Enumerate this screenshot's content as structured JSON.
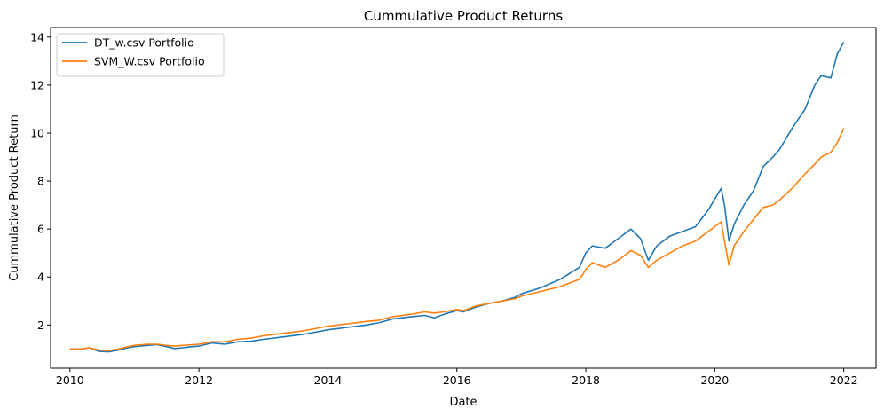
{
  "chart_data": {
    "type": "line",
    "title": "Cummulative Product Returns",
    "xlabel": "Date",
    "ylabel": "Cummulative Product Return",
    "xlim": [
      2009.7,
      2022.5
    ],
    "ylim": [
      0.2,
      14.4
    ],
    "x_ticks": [
      2010,
      2012,
      2014,
      2016,
      2018,
      2020,
      2022
    ],
    "y_ticks": [
      2,
      4,
      6,
      8,
      10,
      12,
      14
    ],
    "grid": false,
    "legend_position": "top-left",
    "series": [
      {
        "name": "DT_w.csv Portfolio",
        "color": "#1f77b4",
        "x": [
          2010.0,
          2010.15,
          2010.3,
          2010.45,
          2010.6,
          2010.75,
          2010.9,
          2011.0,
          2011.2,
          2011.35,
          2011.5,
          2011.62,
          2011.75,
          2011.9,
          2012.0,
          2012.2,
          2012.4,
          2012.6,
          2012.8,
          2013.0,
          2013.3,
          2013.6,
          2013.9,
          2014.0,
          2014.3,
          2014.6,
          2014.8,
          2015.0,
          2015.3,
          2015.5,
          2015.65,
          2015.8,
          2016.0,
          2016.1,
          2016.3,
          2016.5,
          2016.7,
          2016.9,
          2017.0,
          2017.3,
          2017.6,
          2017.9,
          2018.0,
          2018.1,
          2018.3,
          2018.5,
          2018.7,
          2018.85,
          2018.97,
          2019.1,
          2019.3,
          2019.5,
          2019.7,
          2019.9,
          2020.1,
          2020.15,
          2020.22,
          2020.3,
          2020.45,
          2020.6,
          2020.75,
          2020.9,
          2021.0,
          2021.2,
          2021.4,
          2021.55,
          2021.65,
          2021.8,
          2021.9,
          2022.0
        ],
        "y": [
          1.0,
          0.98,
          1.05,
          0.9,
          0.88,
          0.95,
          1.05,
          1.1,
          1.15,
          1.18,
          1.1,
          1.02,
          1.05,
          1.1,
          1.12,
          1.25,
          1.2,
          1.3,
          1.32,
          1.4,
          1.5,
          1.6,
          1.75,
          1.8,
          1.9,
          2.0,
          2.1,
          2.25,
          2.35,
          2.4,
          2.3,
          2.45,
          2.6,
          2.55,
          2.75,
          2.9,
          3.0,
          3.15,
          3.3,
          3.55,
          3.9,
          4.4,
          5.0,
          5.3,
          5.2,
          5.6,
          6.0,
          5.6,
          4.7,
          5.3,
          5.7,
          5.9,
          6.1,
          6.8,
          7.7,
          7.0,
          5.5,
          6.2,
          7.0,
          7.6,
          8.6,
          9.0,
          9.3,
          10.2,
          11.0,
          12.0,
          12.4,
          12.3,
          13.3,
          13.8
        ]
      },
      {
        "name": "SVM_W.csv Portfolio",
        "color": "#ff7f0e",
        "x": [
          2010.0,
          2010.15,
          2010.3,
          2010.45,
          2010.6,
          2010.75,
          2010.9,
          2011.0,
          2011.2,
          2011.35,
          2011.5,
          2011.62,
          2011.75,
          2011.9,
          2012.0,
          2012.2,
          2012.4,
          2012.6,
          2012.8,
          2013.0,
          2013.3,
          2013.6,
          2013.9,
          2014.0,
          2014.3,
          2014.6,
          2014.8,
          2015.0,
          2015.3,
          2015.5,
          2015.65,
          2015.8,
          2016.0,
          2016.1,
          2016.3,
          2016.5,
          2016.7,
          2016.9,
          2017.0,
          2017.3,
          2017.6,
          2017.9,
          2018.0,
          2018.1,
          2018.3,
          2018.5,
          2018.7,
          2018.85,
          2018.97,
          2019.1,
          2019.3,
          2019.5,
          2019.7,
          2019.9,
          2020.1,
          2020.15,
          2020.22,
          2020.3,
          2020.45,
          2020.6,
          2020.75,
          2020.9,
          2021.0,
          2021.2,
          2021.4,
          2021.55,
          2021.65,
          2021.8,
          2021.9,
          2022.0
        ],
        "y": [
          1.0,
          1.0,
          1.05,
          0.95,
          0.93,
          1.0,
          1.1,
          1.15,
          1.2,
          1.2,
          1.15,
          1.12,
          1.15,
          1.18,
          1.2,
          1.3,
          1.3,
          1.4,
          1.45,
          1.55,
          1.65,
          1.75,
          1.9,
          1.95,
          2.05,
          2.15,
          2.2,
          2.35,
          2.45,
          2.55,
          2.5,
          2.55,
          2.65,
          2.6,
          2.8,
          2.9,
          3.0,
          3.1,
          3.2,
          3.4,
          3.6,
          3.9,
          4.3,
          4.6,
          4.4,
          4.7,
          5.1,
          4.9,
          4.4,
          4.7,
          5.0,
          5.3,
          5.5,
          5.9,
          6.3,
          5.5,
          4.5,
          5.3,
          5.9,
          6.4,
          6.9,
          7.0,
          7.2,
          7.7,
          8.3,
          8.7,
          9.0,
          9.2,
          9.6,
          10.2
        ]
      }
    ]
  }
}
